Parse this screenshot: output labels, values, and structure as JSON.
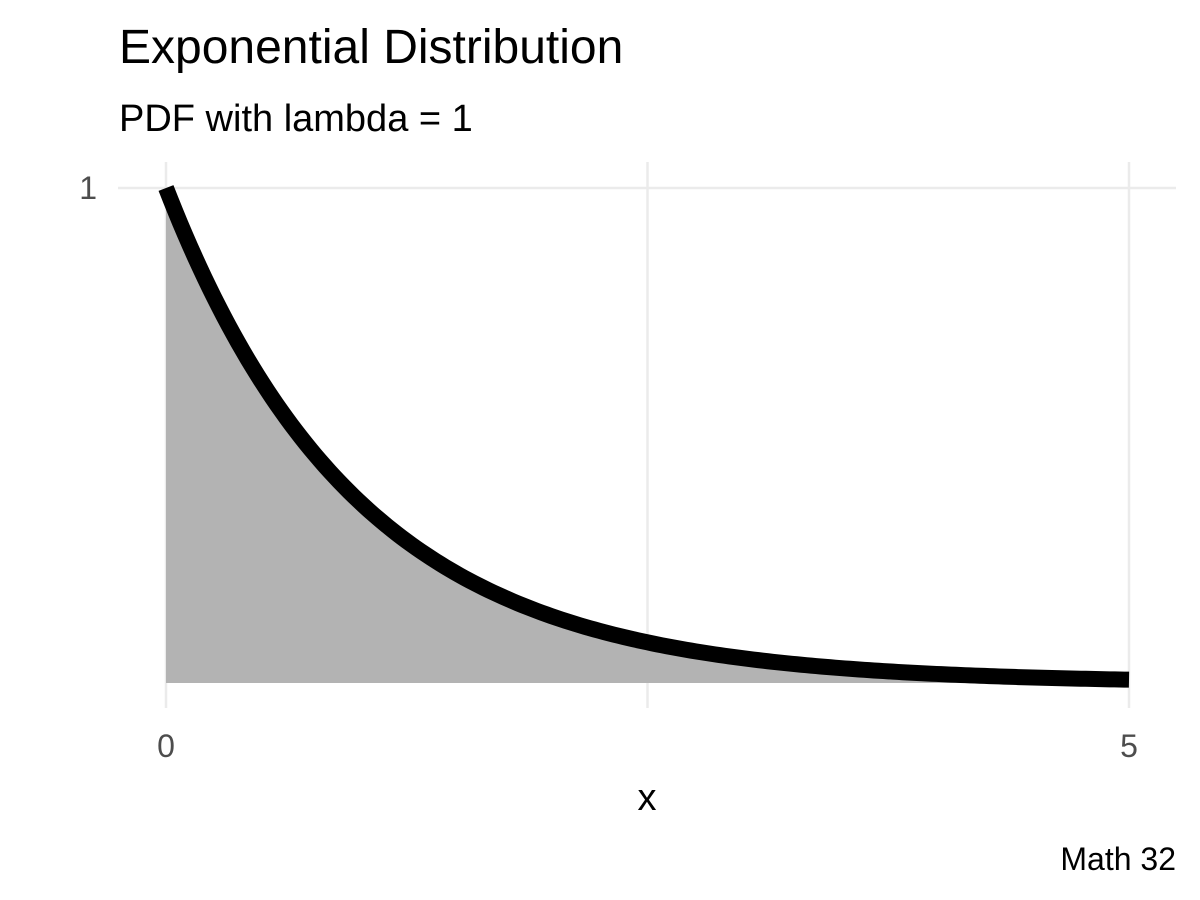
{
  "chart_data": {
    "type": "area",
    "title": "Exponential Distribution",
    "subtitle": "PDF with lambda = 1",
    "xlabel": "x",
    "ylabel": "",
    "caption": "Math 32",
    "xlim": [
      0,
      5
    ],
    "ylim": [
      0,
      1
    ],
    "x_ticks": [
      {
        "value": 0,
        "label": "0"
      },
      {
        "value": 5,
        "label": "5"
      }
    ],
    "y_ticks": [
      {
        "value": 1,
        "label": "1"
      }
    ],
    "grid": true,
    "legend": "none",
    "series": [
      {
        "x": [
          0,
          0.25,
          0.5,
          0.75,
          1,
          1.25,
          1.5,
          1.75,
          2,
          2.25,
          2.5,
          2.75,
          3,
          3.25,
          3.5,
          3.75,
          4,
          4.25,
          4.5,
          4.75,
          5
        ],
        "y": [
          1,
          0.7788,
          0.6065,
          0.4724,
          0.3679,
          0.2865,
          0.2231,
          0.1738,
          0.1353,
          0.1054,
          0.0821,
          0.0639,
          0.0498,
          0.0388,
          0.0302,
          0.0235,
          0.0183,
          0.0143,
          0.0111,
          0.0087,
          0.0067
        ],
        "line_color": "#000000",
        "fill_color": "#b3b3b3"
      }
    ]
  },
  "colors": {
    "grid": "#ebebeb",
    "tick_text": "#4d4d4d",
    "background": "#ffffff"
  }
}
